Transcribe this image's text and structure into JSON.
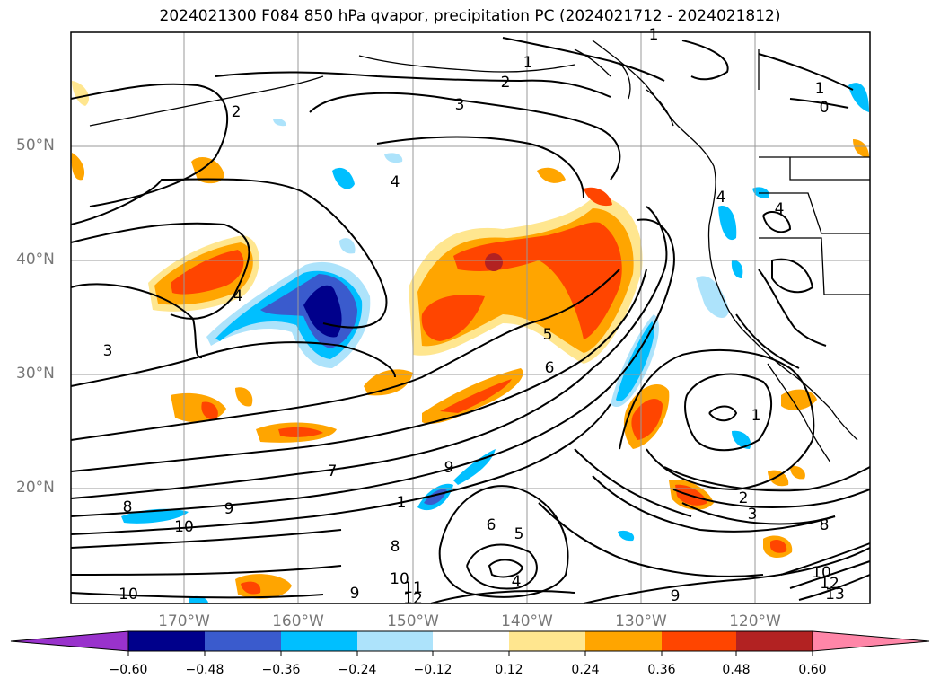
{
  "title": "2024021300 F084 850 hPa qvapor, precipitation PC (2024021712 - 2024021812)",
  "lat_labels": [
    "50°N",
    "40°N",
    "30°N",
    "20°N"
  ],
  "lon_labels": [
    "170°W",
    "160°W",
    "150°W",
    "140°W",
    "130°W",
    "120°W"
  ],
  "colorbar": {
    "colors": [
      "#9932cc",
      "#00008b",
      "#3a5bcd",
      "#00bfff",
      "#ade3fb",
      "#ffffff",
      "#ffe68f",
      "#ffa500",
      "#ff4500",
      "#b22222",
      "#ff86a8"
    ],
    "tick_labels": [
      "−0.60",
      "−0.48",
      "−0.36",
      "−0.24",
      "−0.12",
      "0.12",
      "0.24",
      "0.36",
      "0.48",
      "0.60"
    ]
  },
  "contour_labels": [
    "1",
    "1",
    "2",
    "3",
    "2",
    "1",
    "0",
    "4",
    "4",
    "4",
    "4",
    "3",
    "5",
    "6",
    "1",
    "2",
    "3",
    "8",
    "9",
    "7",
    "1",
    "8",
    "9",
    "10",
    "6",
    "5",
    "4",
    "8",
    "10",
    "11",
    "12",
    "9",
    "9",
    "10",
    "12",
    "13",
    "10"
  ],
  "map_colors": {
    "ocean": "#ffffff",
    "coastline": "#000000",
    "grid": "#999999"
  }
}
